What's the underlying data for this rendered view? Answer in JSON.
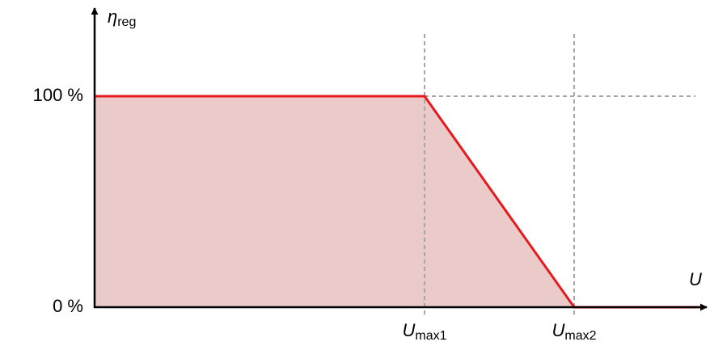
{
  "chart_data": {
    "type": "line",
    "y_label": {
      "symbol": "η",
      "subscript": "reg"
    },
    "x_label": "U",
    "x": [
      0,
      408,
      593,
      748
    ],
    "series": [
      {
        "color": "#e8191c",
        "fill": "#ebcaca",
        "values": [
          100,
          100,
          0,
          0
        ]
      }
    ],
    "xlim": [
      0,
      755
    ],
    "ylim": [
      0,
      141
    ],
    "xticks": [
      {
        "value": 408,
        "label": "U",
        "subscript": "max1"
      },
      {
        "value": 593,
        "label": "U",
        "subscript": "max2"
      }
    ],
    "yticks": [
      {
        "value": 0,
        "label": "0 %"
      },
      {
        "value": 100,
        "label": "100 %"
      }
    ],
    "grid": true
  }
}
